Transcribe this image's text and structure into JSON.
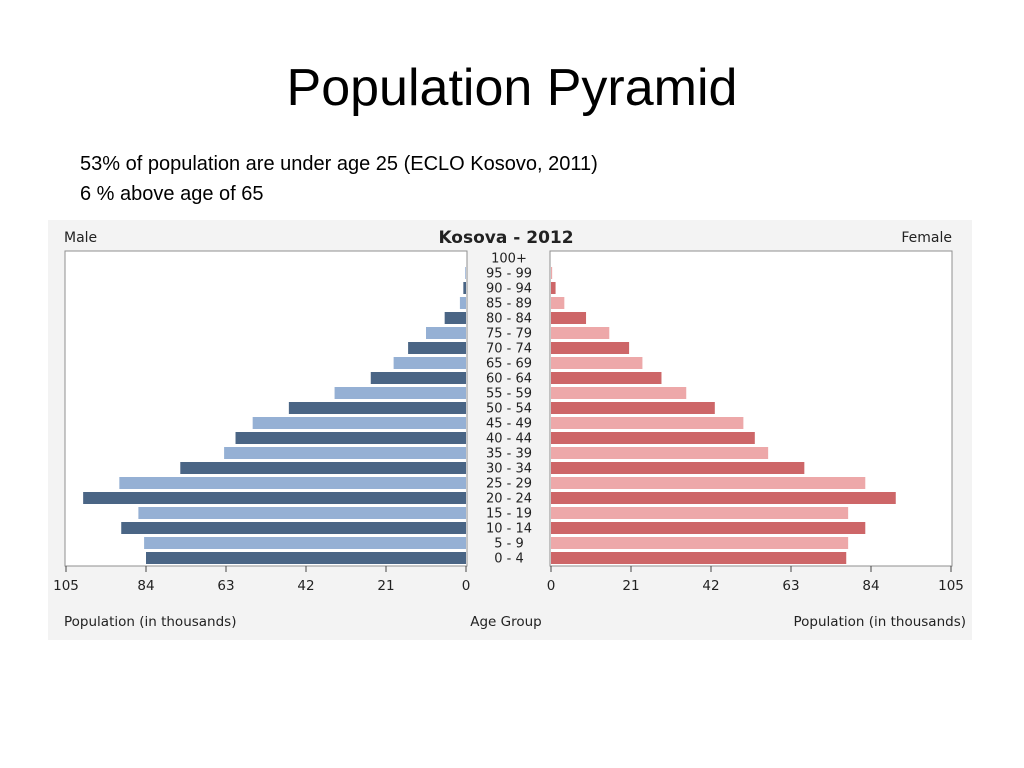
{
  "slide": {
    "title": "Population Pyramid",
    "line1": "53% of population are under age 25 (ECLO Kosovo, 2011)",
    "line2": "6 % above age of 65"
  },
  "chart_data": {
    "type": "bar",
    "orientation": "horizontal-pyramid",
    "title": "Kosova - 2012",
    "left_label": "Male",
    "right_label": "Female",
    "categories": [
      "100+",
      "95 - 99",
      "90 - 94",
      "85 - 89",
      "80 - 84",
      "75 - 79",
      "70 - 74",
      "65 - 69",
      "60 - 64",
      "55 - 59",
      "50 - 54",
      "45 - 49",
      "40 - 44",
      "35 - 39",
      "30 - 34",
      "25 - 29",
      "20 - 24",
      "15 - 19",
      "10 - 14",
      "5 - 9",
      "0 - 4"
    ],
    "series": [
      {
        "name": "Male",
        "values": [
          0,
          0.2,
          0.7,
          1.6,
          5.6,
          10.5,
          15.2,
          19,
          25,
          34.5,
          46.5,
          56,
          60.5,
          63.5,
          75,
          91,
          100.5,
          86,
          90.5,
          84.5,
          84
        ]
      },
      {
        "name": "Female",
        "values": [
          0,
          0.3,
          1.2,
          3.5,
          9.2,
          15.3,
          20.5,
          24,
          29,
          35.5,
          43,
          50.5,
          53.5,
          57,
          66.5,
          82.5,
          90.5,
          78,
          82.5,
          78,
          77.5
        ]
      }
    ],
    "xlim": [
      0,
      105
    ],
    "xticks": [
      "105",
      "84",
      "63",
      "42",
      "21",
      "0"
    ],
    "xticks_right": [
      "0",
      "21",
      "42",
      "63",
      "84",
      "105"
    ],
    "xlabel_left": "Population (in thousands)",
    "xlabel_center": "Age Group",
    "xlabel_right": "Population (in thousands)",
    "colors": {
      "male_dark": "#4a6585",
      "male_light": "#95b0d4",
      "female_dark": "#cd6668",
      "female_light": "#eda8a9",
      "chart_bg": "#f3f3f3",
      "frame": "#8f8f8f"
    },
    "grid": false
  }
}
